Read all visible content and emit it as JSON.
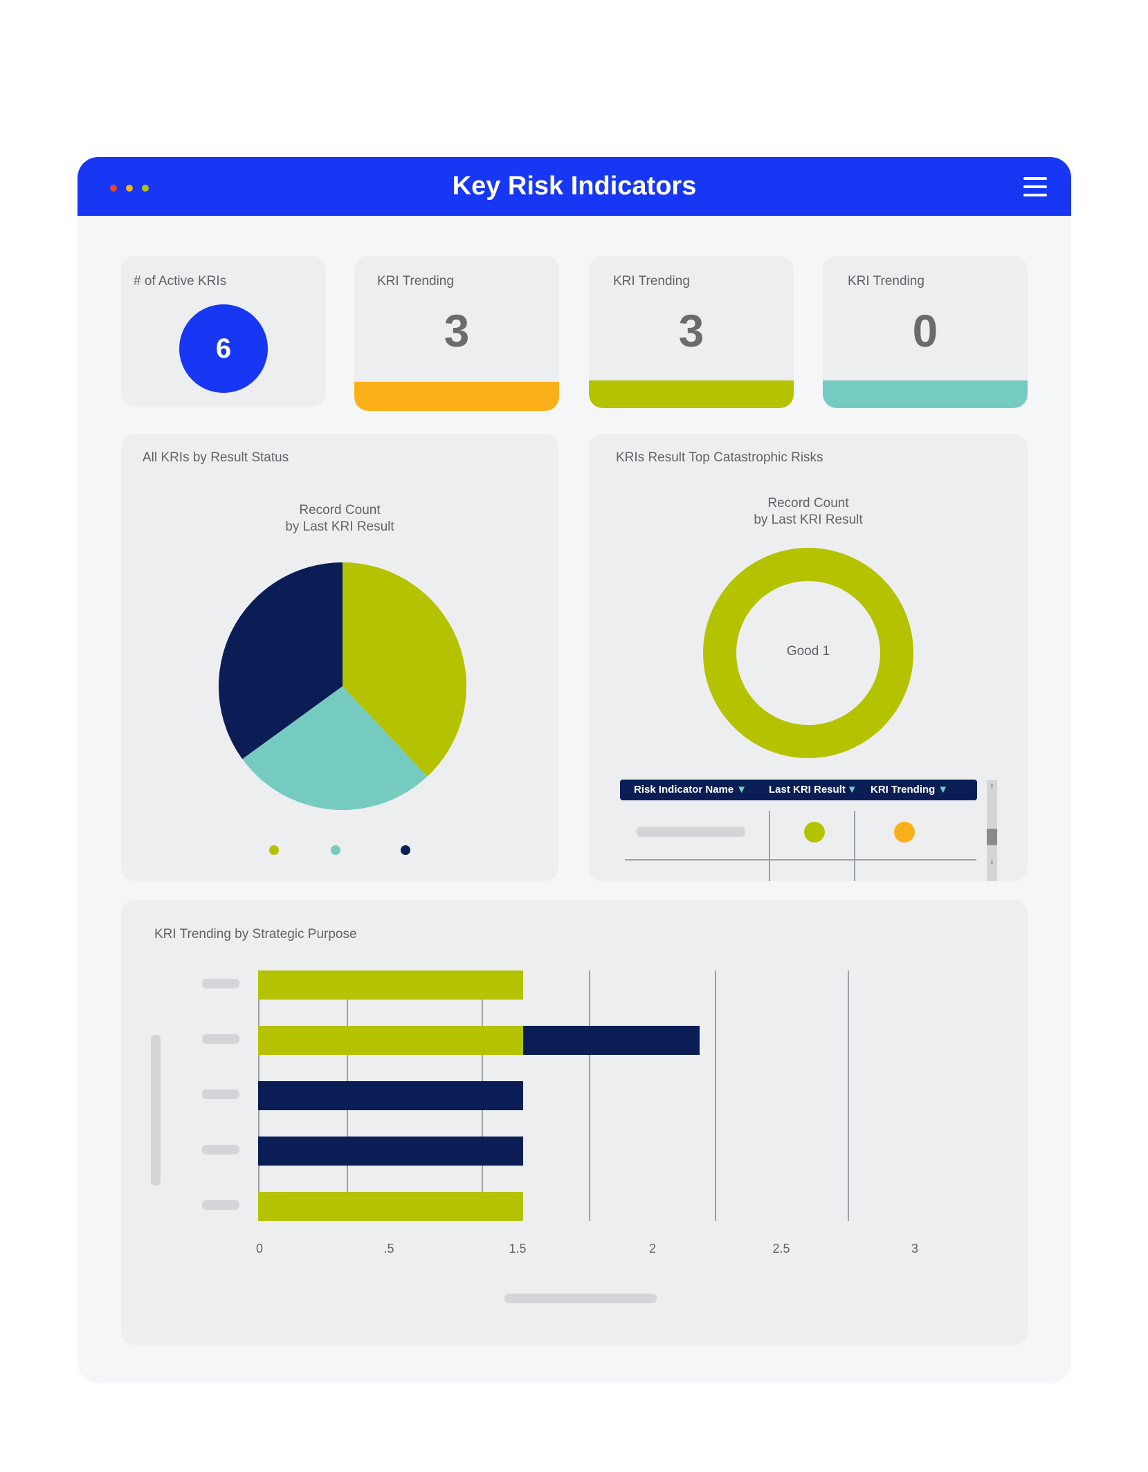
{
  "window": {
    "title": "Key Risk Indicators",
    "dots": [
      "#e8472b",
      "#f5b01c",
      "#b5c200"
    ],
    "menu_icon": "hamburger-icon"
  },
  "colors": {
    "accent": "#1737f5",
    "lime": "#b5c200",
    "teal": "#76cbc0",
    "navy": "#0b1d55",
    "orange": "#fbb01a"
  },
  "stats": {
    "active": {
      "label": "# of Active KRIs",
      "value": "6"
    },
    "trending": [
      {
        "label": "KRI Trending",
        "value": "3",
        "color": "#fbb01a"
      },
      {
        "label": "KRI Trending",
        "value": "3",
        "color": "#b5c200"
      },
      {
        "label": "KRI Trending",
        "value": "0",
        "color": "#76cbc0"
      }
    ]
  },
  "pie_panel": {
    "title": "All KRIs by Result Status",
    "caption_line1": "Record Count",
    "caption_line2": "by Last KRI Result"
  },
  "donut_panel": {
    "title": "KRIs Result Top Catastrophic Risks",
    "caption_line1": "Record Count",
    "caption_line2": "by Last KRI Result",
    "center_label": "Good 1",
    "table": {
      "columns": [
        "Risk Indicator Name",
        "Last KRI Result",
        "KRI Trending"
      ],
      "sort_glyph": "▼",
      "row": {
        "result_color": "#b5c200",
        "trending_color": "#fbb01a"
      },
      "scroll_up": "↑",
      "scroll_down": "↓"
    }
  },
  "bar_panel": {
    "title": "KRI Trending by Strategic Purpose"
  },
  "chart_data": [
    {
      "type": "pie",
      "title": "Record Count by Last KRI Result",
      "slices": [
        {
          "value": 38,
          "color": "#b5c200"
        },
        {
          "value": 27,
          "color": "#76cbc0"
        },
        {
          "value": 35,
          "color": "#0b1d55"
        }
      ],
      "legend": "bottom"
    },
    {
      "type": "pie",
      "title": "Record Count by Last KRI Result",
      "slices": [
        {
          "label": "Good",
          "value": 1,
          "color": "#b5c200"
        }
      ]
    },
    {
      "type": "bar",
      "orientation": "horizontal",
      "title": "KRI Trending by Strategic Purpose",
      "tick_labels": [
        "0",
        ".5",
        "1.5",
        "2",
        "2.5",
        "3"
      ],
      "rows": [
        {
          "segments": [
            {
              "value": 1.5,
              "color": "#b5c200"
            }
          ]
        },
        {
          "segments": [
            {
              "value": 1.5,
              "color": "#b5c200"
            },
            {
              "value": 1,
              "color": "#0b1d55"
            }
          ]
        },
        {
          "segments": [
            {
              "value": 1.5,
              "color": "#0b1d55"
            }
          ]
        },
        {
          "segments": [
            {
              "value": 1.5,
              "color": "#0b1d55"
            }
          ]
        },
        {
          "segments": [
            {
              "value": 1.5,
              "color": "#b5c200"
            }
          ]
        }
      ],
      "grid": true
    }
  ]
}
